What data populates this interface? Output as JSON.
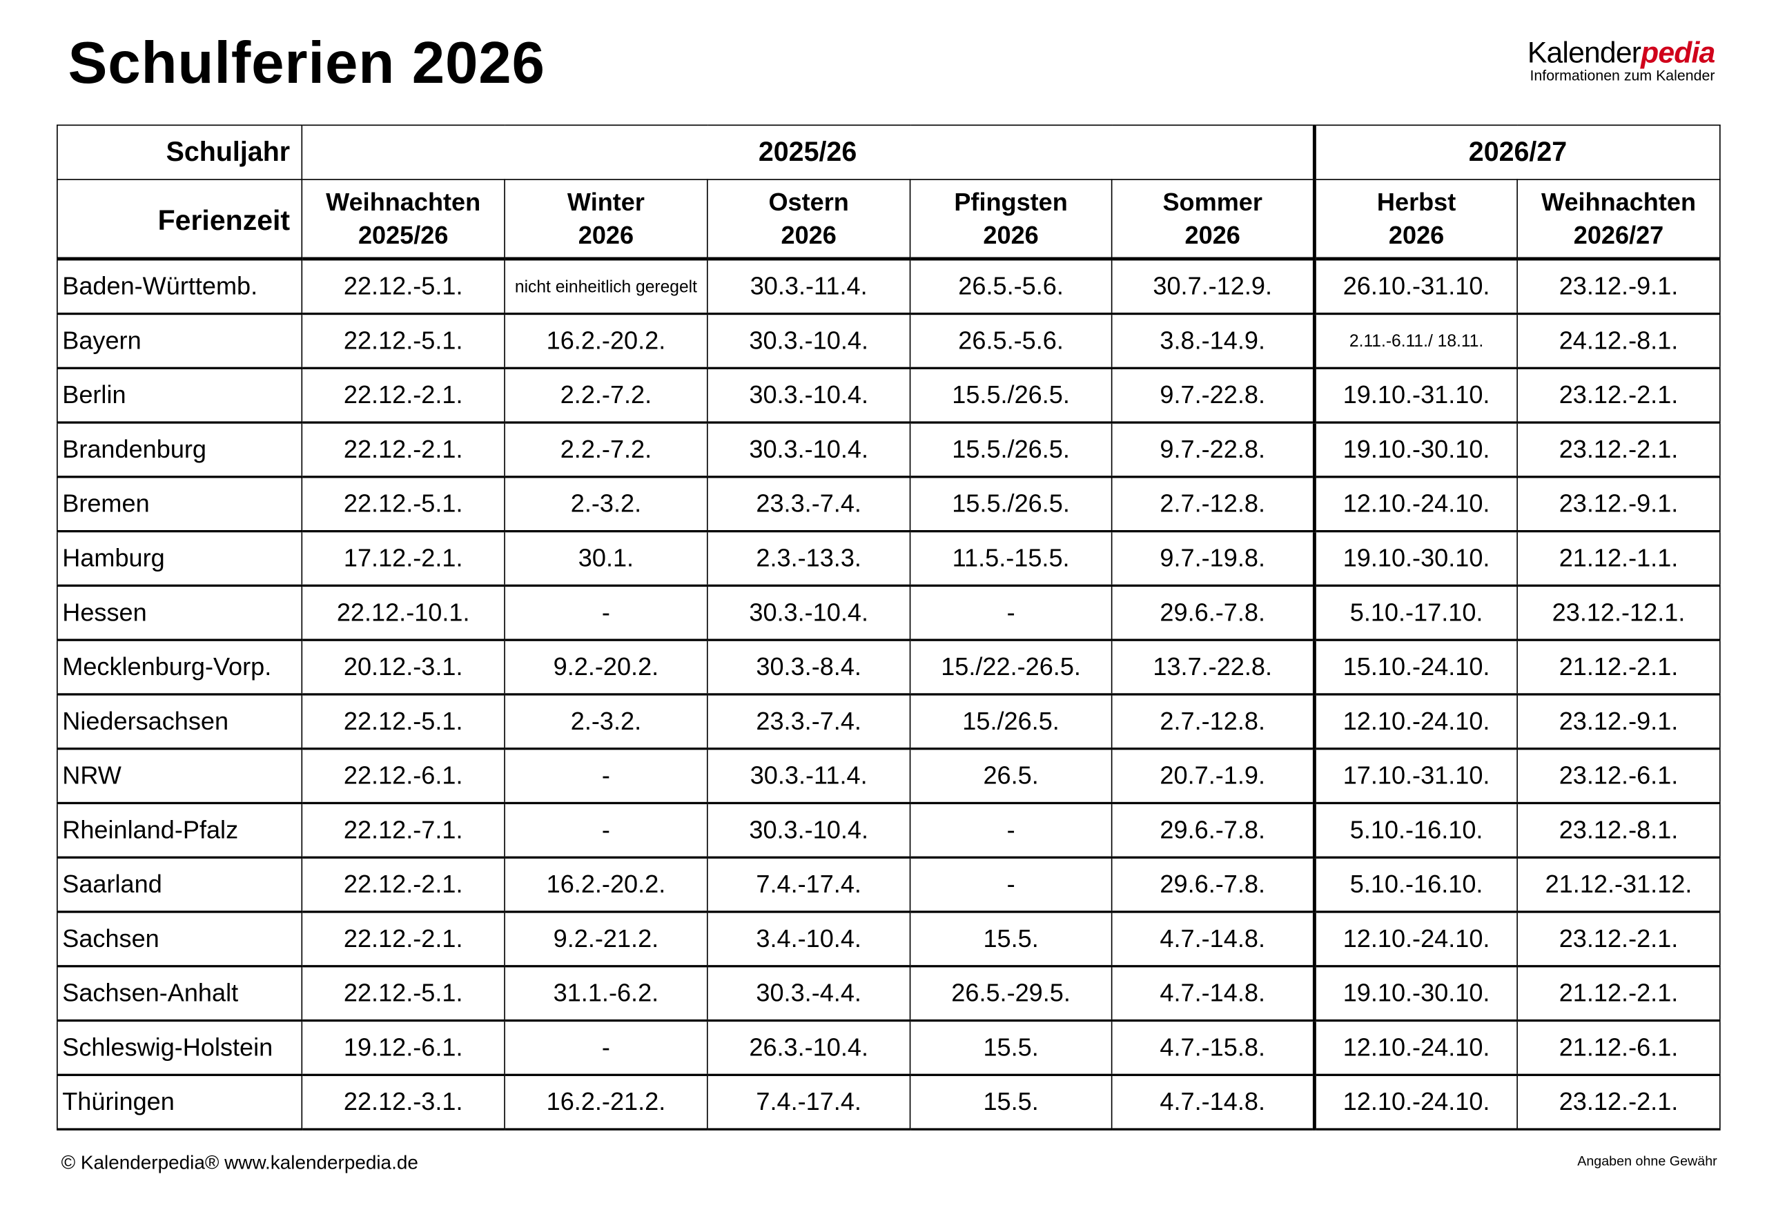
{
  "title": "Schulferien 2026",
  "logo": {
    "part1": "Kalender",
    "part2": "pedia",
    "tagline": "Informationen zum Kalender",
    "accent_color": "#d0021b"
  },
  "header": {
    "schuljahr_label": "Schuljahr",
    "ferienzeit_label": "Ferienzeit",
    "years": [
      "2025/26",
      "2026/27"
    ],
    "columns": [
      {
        "name": "Weihnachten",
        "year": "2025/26"
      },
      {
        "name": "Winter",
        "year": "2026"
      },
      {
        "name": "Ostern",
        "year": "2026"
      },
      {
        "name": "Pfingsten",
        "year": "2026"
      },
      {
        "name": "Sommer",
        "year": "2026"
      },
      {
        "name": "Herbst",
        "year": "2026"
      },
      {
        "name": "Weihnachten",
        "year": "2026/27"
      }
    ]
  },
  "rows": [
    {
      "state": "Baden-Württemb.",
      "values": [
        "22.12.-5.1.",
        "nicht einheitlich geregelt",
        "30.3.-11.4.",
        "26.5.-5.6.",
        "30.7.-12.9.",
        "26.10.-31.10.",
        "23.12.-9.1."
      ]
    },
    {
      "state": "Bayern",
      "values": [
        "22.12.-5.1.",
        "16.2.-20.2.",
        "30.3.-10.4.",
        "26.5.-5.6.",
        "3.8.-14.9.",
        "2.11.-6.11./ 18.11.",
        "24.12.-8.1."
      ]
    },
    {
      "state": "Berlin",
      "values": [
        "22.12.-2.1.",
        "2.2.-7.2.",
        "30.3.-10.4.",
        "15.5./26.5.",
        "9.7.-22.8.",
        "19.10.-31.10.",
        "23.12.-2.1."
      ]
    },
    {
      "state": "Brandenburg",
      "values": [
        "22.12.-2.1.",
        "2.2.-7.2.",
        "30.3.-10.4.",
        "15.5./26.5.",
        "9.7.-22.8.",
        "19.10.-30.10.",
        "23.12.-2.1."
      ]
    },
    {
      "state": "Bremen",
      "values": [
        "22.12.-5.1.",
        "2.-3.2.",
        "23.3.-7.4.",
        "15.5./26.5.",
        "2.7.-12.8.",
        "12.10.-24.10.",
        "23.12.-9.1."
      ]
    },
    {
      "state": "Hamburg",
      "values": [
        "17.12.-2.1.",
        "30.1.",
        "2.3.-13.3.",
        "11.5.-15.5.",
        "9.7.-19.8.",
        "19.10.-30.10.",
        "21.12.-1.1."
      ]
    },
    {
      "state": "Hessen",
      "values": [
        "22.12.-10.1.",
        "-",
        "30.3.-10.4.",
        "-",
        "29.6.-7.8.",
        "5.10.-17.10.",
        "23.12.-12.1."
      ]
    },
    {
      "state": "Mecklenburg-Vorp.",
      "values": [
        "20.12.-3.1.",
        "9.2.-20.2.",
        "30.3.-8.4.",
        "15./22.-26.5.",
        "13.7.-22.8.",
        "15.10.-24.10.",
        "21.12.-2.1."
      ]
    },
    {
      "state": "Niedersachsen",
      "values": [
        "22.12.-5.1.",
        "2.-3.2.",
        "23.3.-7.4.",
        "15./26.5.",
        "2.7.-12.8.",
        "12.10.-24.10.",
        "23.12.-9.1."
      ]
    },
    {
      "state": "NRW",
      "values": [
        "22.12.-6.1.",
        "-",
        "30.3.-11.4.",
        "26.5.",
        "20.7.-1.9.",
        "17.10.-31.10.",
        "23.12.-6.1."
      ]
    },
    {
      "state": "Rheinland-Pfalz",
      "values": [
        "22.12.-7.1.",
        "-",
        "30.3.-10.4.",
        "-",
        "29.6.-7.8.",
        "5.10.-16.10.",
        "23.12.-8.1."
      ]
    },
    {
      "state": "Saarland",
      "values": [
        "22.12.-2.1.",
        "16.2.-20.2.",
        "7.4.-17.4.",
        "-",
        "29.6.-7.8.",
        "5.10.-16.10.",
        "21.12.-31.12."
      ]
    },
    {
      "state": "Sachsen",
      "values": [
        "22.12.-2.1.",
        "9.2.-21.2.",
        "3.4.-10.4.",
        "15.5.",
        "4.7.-14.8.",
        "12.10.-24.10.",
        "23.12.-2.1."
      ]
    },
    {
      "state": "Sachsen-Anhalt",
      "values": [
        "22.12.-5.1.",
        "31.1.-6.2.",
        "30.3.-4.4.",
        "26.5.-29.5.",
        "4.7.-14.8.",
        "19.10.-30.10.",
        "21.12.-2.1."
      ]
    },
    {
      "state": "Schleswig-Holstein",
      "values": [
        "19.12.-6.1.",
        "-",
        "26.3.-10.4.",
        "15.5.",
        "4.7.-15.8.",
        "12.10.-24.10.",
        "21.12.-6.1."
      ]
    },
    {
      "state": "Thüringen",
      "values": [
        "22.12.-3.1.",
        "16.2.-21.2.",
        "7.4.-17.4.",
        "15.5.",
        "4.7.-14.8.",
        "12.10.-24.10.",
        "23.12.-2.1."
      ]
    }
  ],
  "footer": {
    "copyright": "© Kalenderpedia®   www.kalenderpedia.de",
    "disclaimer": "Angaben ohne Gewähr"
  }
}
